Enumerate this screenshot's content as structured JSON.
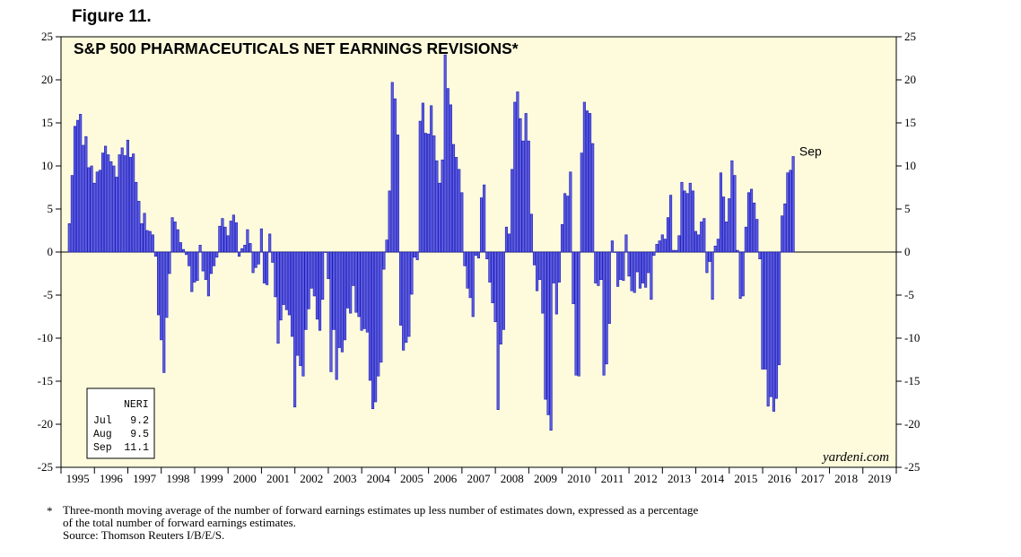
{
  "figure_label": "Figure 11.",
  "footnote": {
    "marker": "*",
    "lines": [
      "Three-month moving average of the number of forward earnings estimates up less number of estimates down, expressed as a percentage",
      "of the total number of forward earnings estimates.",
      "Source: Thomson Reuters I/B/E/S."
    ]
  },
  "colors": {
    "plot_bg": "#fdfbdc",
    "bar": "#5d5de6",
    "bar_edge": "#1b1bb0",
    "axis": "#000000"
  },
  "chart_data": {
    "type": "bar",
    "title": "S&P 500 PHARMACEUTICALS NET EARNINGS REVISIONS*",
    "ylim": [
      -25,
      25
    ],
    "yticks": [
      -25,
      -20,
      -15,
      -10,
      -5,
      0,
      5,
      10,
      15,
      20,
      25
    ],
    "x_start": 1995.0,
    "x_end": 2020.0,
    "x_tick_labels": [
      "1995",
      "1996",
      "1997",
      "1998",
      "1999",
      "2000",
      "2001",
      "2002",
      "2003",
      "2004",
      "2005",
      "2006",
      "2007",
      "2008",
      "2009",
      "2010",
      "2011",
      "2012",
      "2013",
      "2014",
      "2015",
      "2016",
      "2017",
      "2018",
      "2019"
    ],
    "first_month": "Jan 1995",
    "last_month_label": "Sep",
    "watermark": "yardeni.com",
    "legend_box": {
      "header": "NERI",
      "rows": [
        [
          "Jul",
          "9.2"
        ],
        [
          "Aug",
          "9.5"
        ],
        [
          "Sep",
          "11.1"
        ]
      ]
    },
    "values": [
      3.3,
      8.9,
      14.6,
      15.3,
      16.0,
      12.4,
      13.4,
      9.8,
      10.0,
      8.0,
      9.3,
      9.5,
      11.5,
      12.3,
      11.3,
      10.5,
      10.0,
      8.7,
      11.3,
      12.1,
      11.2,
      13.0,
      11.0,
      11.4,
      8.1,
      5.9,
      3.3,
      4.5,
      2.5,
      2.4,
      2.0,
      -0.5,
      -7.3,
      -10.2,
      -14.0,
      -7.6,
      -2.5,
      4.0,
      3.5,
      2.6,
      1.1,
      0.3,
      -0.3,
      -1.6,
      -4.6,
      -3.5,
      -3.3,
      0.8,
      -2.2,
      -3.2,
      -5.1,
      -2.5,
      -1.6,
      -0.6,
      3.0,
      3.9,
      2.9,
      1.9,
      3.6,
      4.3,
      3.4,
      -0.5,
      0.4,
      0.8,
      2.6,
      1.0,
      -2.4,
      -1.8,
      -1.4,
      2.7,
      -3.6,
      -3.8,
      2.1,
      -1.2,
      -5.2,
      -10.6,
      -7.9,
      -6.1,
      -6.7,
      -7.3,
      -9.8,
      -18.0,
      -12.0,
      -13.2,
      -14.4,
      -9.0,
      -6.6,
      -4.2,
      -5.1,
      -7.8,
      -9.1,
      -5.5,
      0.0,
      -3.1,
      -13.9,
      -9.0,
      -14.8,
      -11.1,
      -11.6,
      -10.2,
      -6.5,
      -7.1,
      -3.9,
      -7.0,
      -7.5,
      -9.1,
      -8.9,
      -9.3,
      -14.9,
      -18.2,
      -17.4,
      -14.4,
      -12.8,
      -2.0,
      1.4,
      7.1,
      19.7,
      17.8,
      13.6,
      -8.5,
      -11.4,
      -10.5,
      -9.8,
      -4.9,
      -0.6,
      -0.9,
      15.2,
      17.3,
      13.8,
      13.7,
      17.0,
      13.5,
      10.6,
      8.0,
      10.7,
      22.9,
      19.0,
      17.1,
      12.5,
      11.0,
      9.6,
      6.9,
      -1.6,
      -4.2,
      -5.3,
      -7.5,
      -0.4,
      -0.7,
      6.3,
      7.8,
      -0.8,
      -3.5,
      -5.9,
      -8.1,
      -18.3,
      -10.7,
      -9.0,
      2.9,
      2.1,
      9.6,
      17.4,
      18.6,
      15.5,
      12.9,
      16.1,
      12.9,
      4.4,
      -1.5,
      -4.5,
      -3.2,
      -7.1,
      -17.1,
      -18.9,
      -20.7,
      -3.6,
      -7.2,
      -3.5,
      3.2,
      6.8,
      6.5,
      9.3,
      -6.0,
      -14.3,
      -14.4,
      11.5,
      17.4,
      16.4,
      16.1,
      12.6,
      -3.6,
      -3.9,
      -3.2,
      -14.3,
      -13.0,
      -8.3,
      1.3,
      0.0,
      -4.0,
      -3.2,
      -3.3,
      2.0,
      -2.8,
      -4.5,
      -4.7,
      -2.3,
      -4.2,
      -3.6,
      -4.1,
      -2.4,
      -5.5,
      -0.4,
      0.9,
      1.3,
      2.0,
      1.5,
      4.0,
      6.6,
      0.2,
      0.2,
      1.9,
      8.1,
      7.1,
      6.8,
      8.0,
      7.1,
      2.4,
      2.0,
      3.5,
      3.9,
      -2.4,
      -1.1,
      -5.5,
      0.7,
      1.5,
      9.2,
      6.4,
      3.5,
      6.2,
      10.6,
      8.9,
      0.2,
      -5.4,
      -5.1,
      2.9,
      6.9,
      7.3,
      5.7,
      3.8,
      -0.8,
      -13.6,
      -13.6,
      -17.9,
      -16.8,
      -18.5,
      -17.0,
      -13.1,
      4.2,
      5.6,
      9.2,
      9.5,
      11.1
    ]
  }
}
